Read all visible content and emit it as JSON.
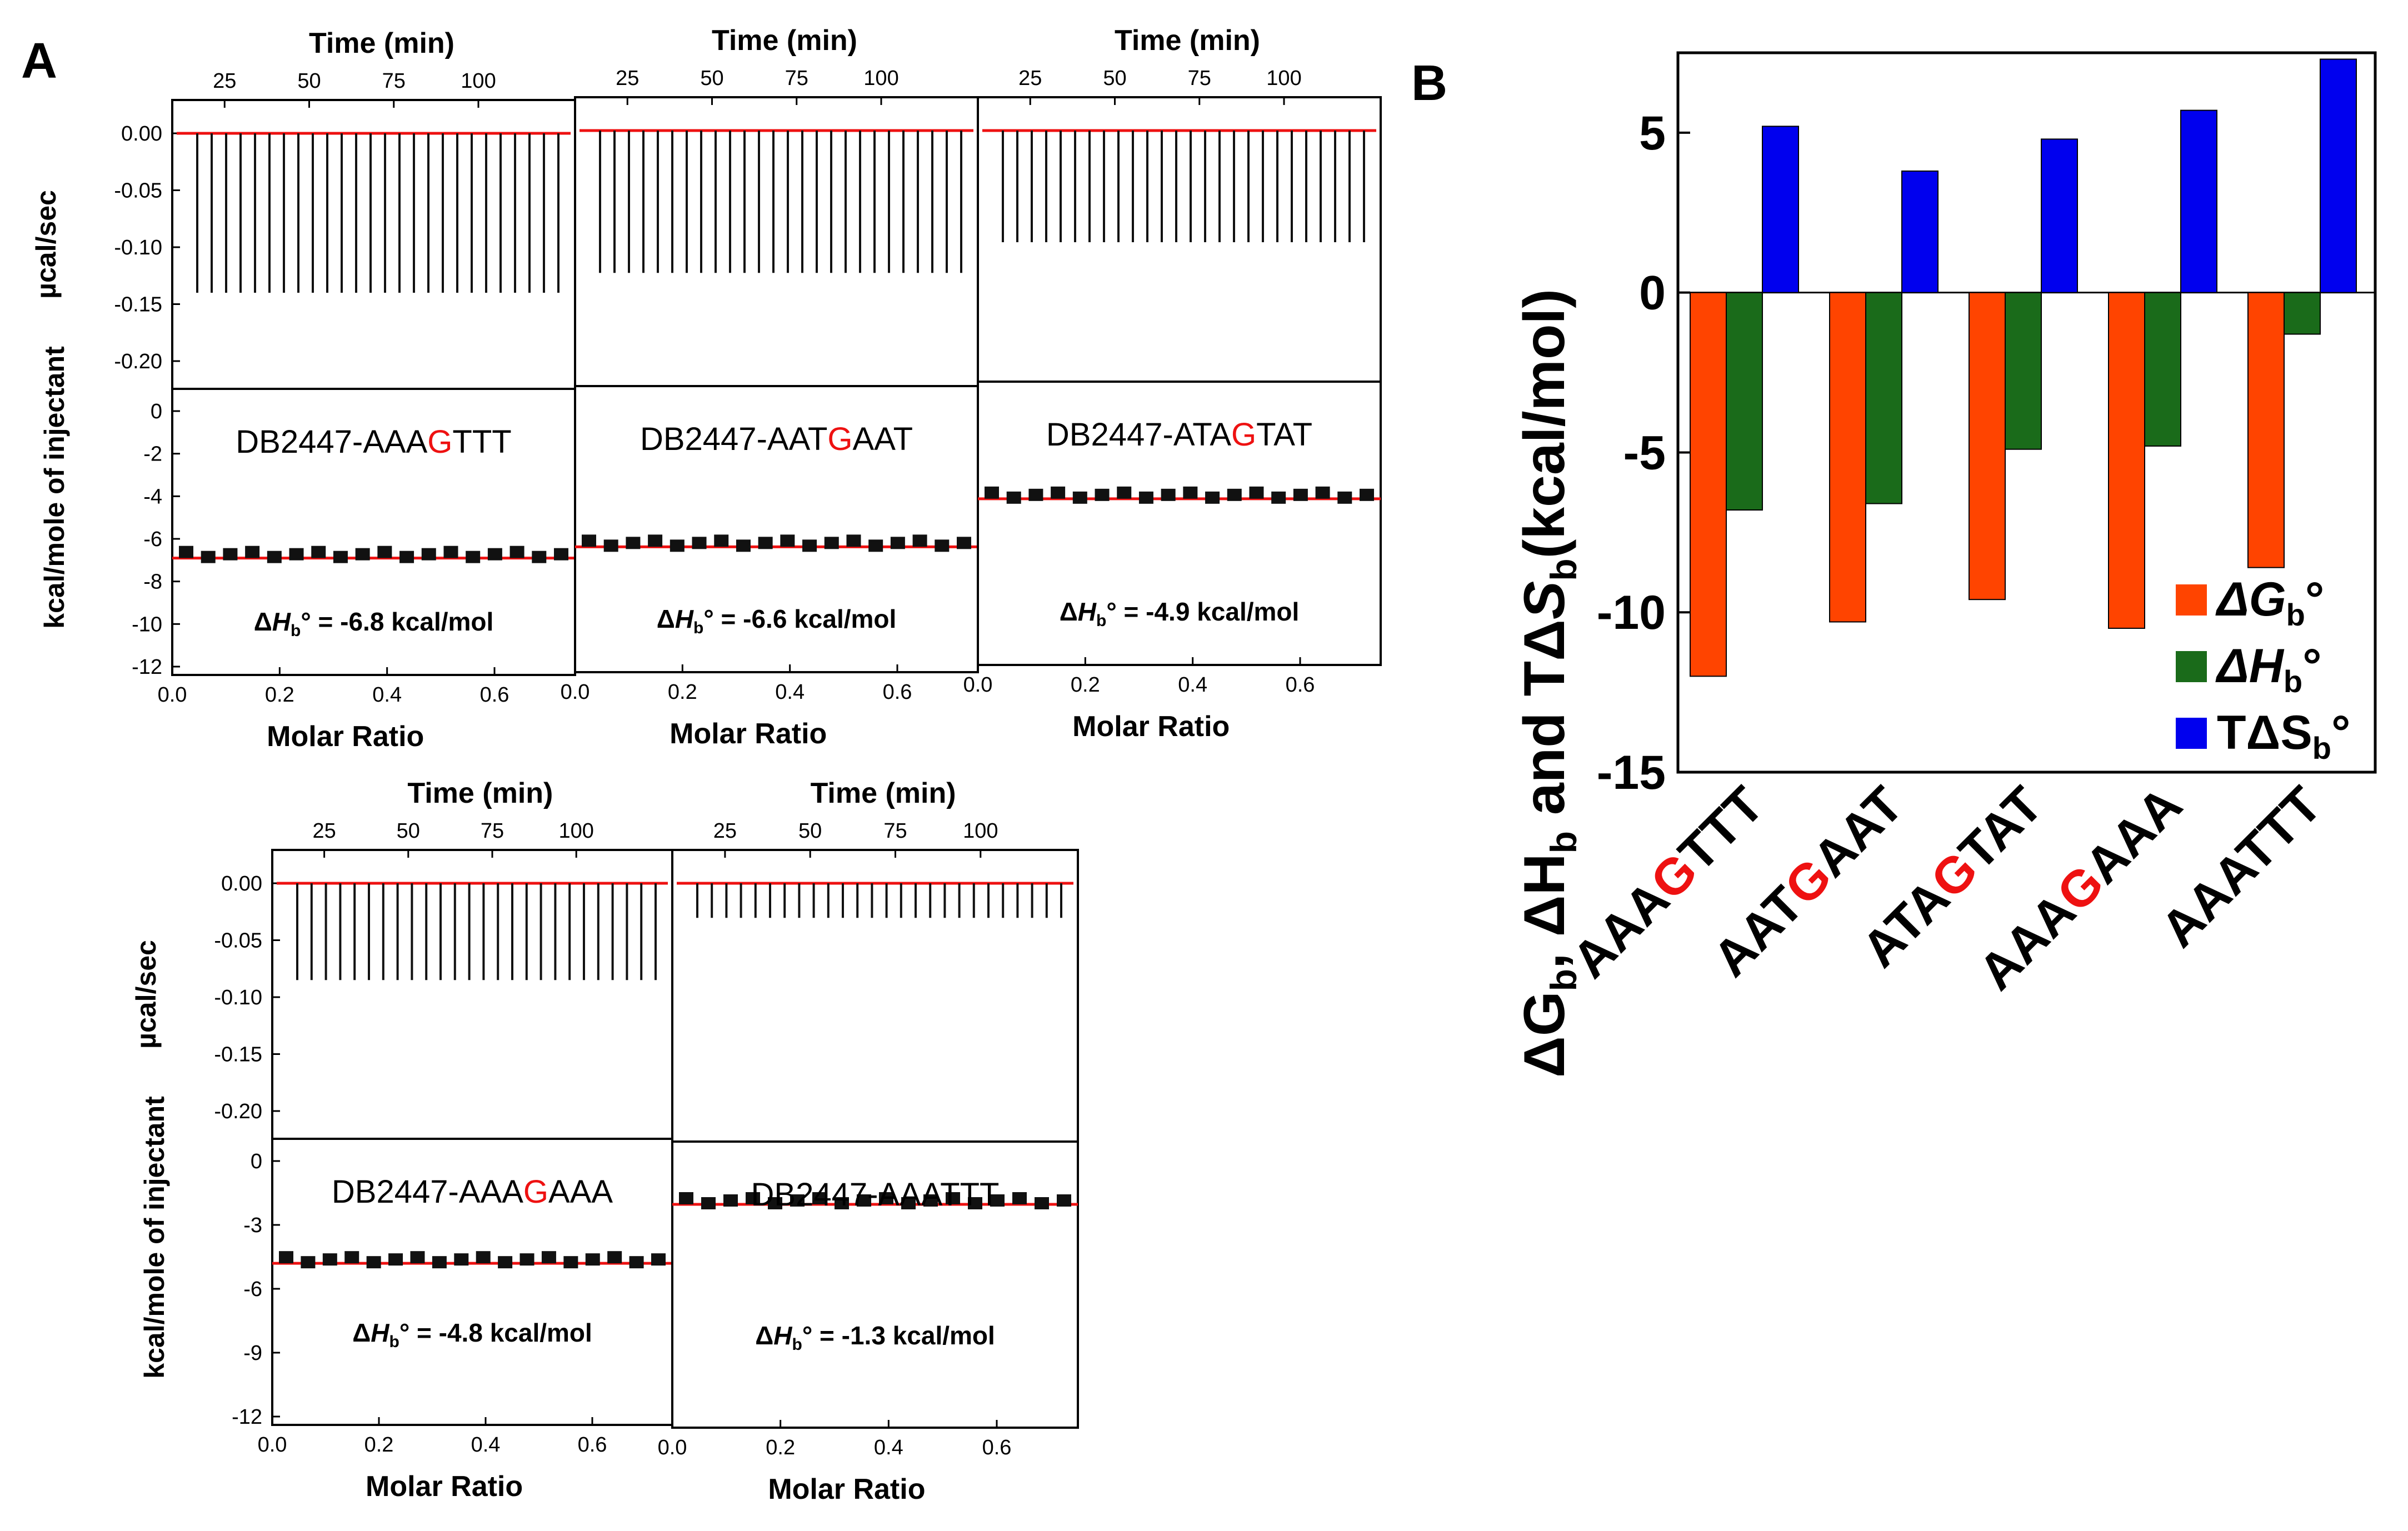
{
  "panel_a": {
    "label": "A",
    "top_axis_title": "Time (min)",
    "top_ticks": [
      "25",
      "50",
      "75",
      "100"
    ],
    "raw_ylabel": "µcal/sec",
    "raw_ticks": [
      "0.00",
      "-0.05",
      "-0.10",
      "-0.15",
      "-0.20"
    ],
    "int_ylabel": "kcal/mole of injectant",
    "int_ticks_row1": [
      "0",
      "-2",
      "-4",
      "-6",
      "-8",
      "-10",
      "-12"
    ],
    "int_ticks_row2": [
      "0",
      "-3",
      "-6",
      "-9",
      "-12"
    ],
    "x_axis_title": "Molar Ratio",
    "x_ticks": [
      "0.0",
      "0.2",
      "0.4",
      "0.6"
    ],
    "dh_prefix": "ΔH",
    "dh_sub": "b",
    "dh_suffix": "° =",
    "plots": [
      {
        "seq_prefix": "DB2447-AAA",
        "seq_highlight": "G",
        "seq_suffix": "TTT",
        "dh_value": "-6.8  kcal/mol",
        "raw_depth": -0.14,
        "int_level": -6.8
      },
      {
        "seq_prefix": "DB2447-AAT",
        "seq_highlight": "G",
        "seq_suffix": "AAT",
        "dh_value": "-6.6  kcal/mol",
        "raw_depth": -0.125,
        "int_level": -6.4
      },
      {
        "seq_prefix": "DB2447-ATA",
        "seq_highlight": "G",
        "seq_suffix": "TAT",
        "dh_value": "-4.9  kcal/mol",
        "raw_depth": -0.1,
        "int_level": -4.4
      },
      {
        "seq_prefix": "DB2447-AAA",
        "seq_highlight": "G",
        "seq_suffix": "AAA",
        "dh_value": "-4.8  kcal/mol",
        "raw_depth": -0.085,
        "int_level": -4.7
      },
      {
        "seq_prefix": "DB2447-AAATTT",
        "seq_highlight": "",
        "seq_suffix": "",
        "dh_value": "-1.3  kcal/mol",
        "raw_depth": -0.03,
        "int_level": -1.8
      }
    ]
  },
  "chart_data": {
    "type": "bar",
    "label": "B",
    "categories": [
      {
        "pre": "AAA",
        "hl": "G",
        "post": "TTT"
      },
      {
        "pre": "AAT",
        "hl": "G",
        "post": "AAT"
      },
      {
        "pre": "ATA",
        "hl": "G",
        "post": "TAT"
      },
      {
        "pre": "AAA",
        "hl": "G",
        "post": "AAA"
      },
      {
        "pre": "AAATTT",
        "hl": "",
        "post": ""
      }
    ],
    "series": [
      {
        "name": "ΔGb°",
        "label_main": "ΔG",
        "label_sub": "b",
        "color": "#ff4400",
        "values": [
          -12.0,
          -10.3,
          -9.6,
          -10.5,
          -8.6
        ]
      },
      {
        "name": "ΔHb°",
        "label_main": "ΔH",
        "label_sub": "b",
        "color": "#1a6b1a",
        "values": [
          -6.8,
          -6.6,
          -4.9,
          -4.8,
          -1.3
        ]
      },
      {
        "name": "TΔSb°",
        "label_main": "TΔS",
        "label_sub": "b",
        "color": "#0000ee",
        "values": [
          5.2,
          3.8,
          4.8,
          5.7,
          7.3
        ]
      }
    ],
    "ylim": [
      -15,
      7.5
    ],
    "yticks": [
      "5",
      "0",
      "-5",
      "-10",
      "-15"
    ],
    "ylabel": "ΔGb, ΔHb and TΔSb(kcal/mol)",
    "ylabel_parts": {
      "d1": "ΔG",
      "b1": "b",
      "c1": ", ",
      "d2": "ΔH",
      "b2": "b",
      "and": " and TΔ",
      "s": "S",
      "b3": "b",
      "unit": "(kcal/mol)"
    },
    "legend_position": "bottom-right",
    "highlight_color": "#ee1111"
  }
}
